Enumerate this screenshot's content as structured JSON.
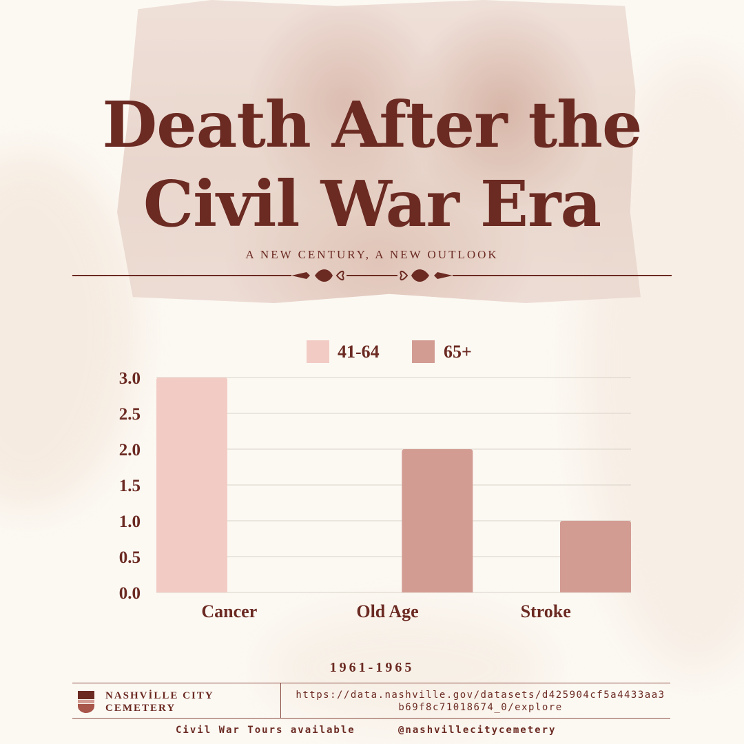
{
  "header": {
    "title_line1": "Death After the",
    "title_line2": "Civil War Era",
    "subtitle": "A NEW CENTURY, A NEW OUTLOOK"
  },
  "colors": {
    "series_41_64": "#f3cbc5",
    "series_65_plus": "#d39c93",
    "text": "#6b2a22",
    "background": "#fcf9f3"
  },
  "chart_data": {
    "type": "bar",
    "categories": [
      "Cancer",
      "Old Age",
      "Stroke"
    ],
    "series": [
      {
        "name": "41-64",
        "values": [
          3,
          0,
          0
        ]
      },
      {
        "name": "65+",
        "values": [
          0,
          2,
          1
        ]
      }
    ],
    "ylim": [
      0,
      3
    ],
    "yticks": [
      "0.0",
      "0.5",
      "1.0",
      "1.5",
      "2.0",
      "2.5",
      "3.0"
    ],
    "grid": true,
    "legend_position": "top-center"
  },
  "footer": {
    "years": "1961-1965",
    "org_name": "NASHVİLLE CITY CEMETERY",
    "source_url": "https://data.nashville.gov/datasets/d425904cf5a4433aa3b69f8c71018674_0/explore",
    "tours": "Civil War Tours available",
    "handle": "@nashvillecitycemetery"
  }
}
